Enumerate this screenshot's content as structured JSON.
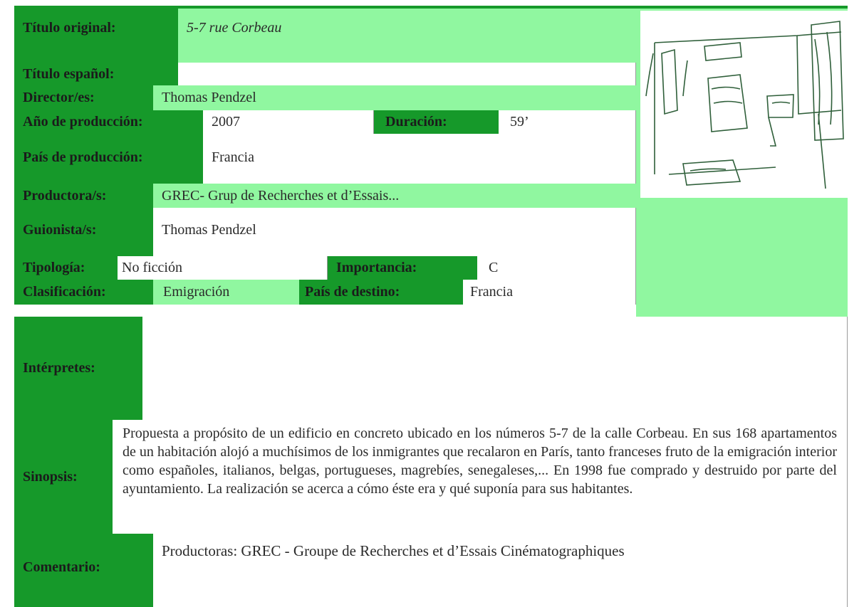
{
  "form": {
    "titulo_original": {
      "label": "Título original:",
      "value": "5-7 rue Corbeau"
    },
    "titulo_espanol": {
      "label": "Título español:"
    },
    "director": {
      "label": "Director/es:",
      "value": "Thomas Pendzel"
    },
    "anio": {
      "label": "Año de producción:",
      "value": "2007"
    },
    "duracion": {
      "label": "Duración:",
      "value": "59’"
    },
    "pais_produccion": {
      "label": "País de producción:",
      "value": "Francia"
    },
    "productora": {
      "label": "Productora/s:",
      "value": "GREC- Grup de Recherches et d’Essais..."
    },
    "guionista": {
      "label": "Guionista/s:",
      "value": "Thomas Pendzel"
    },
    "tipologia": {
      "label": "Tipología:",
      "value": "No ficción"
    },
    "importancia": {
      "label": "Importancia:",
      "value": "C"
    },
    "clasificacion": {
      "label": "Clasificación:",
      "value": "Emigración"
    },
    "pais_destino": {
      "label": "País de destino:",
      "value": "Francia"
    },
    "interpretes": {
      "label": "Intérpretes:"
    },
    "sinopsis": {
      "label": "Sinopsis:",
      "value": "Propuesta a propósito de un edificio en concreto ubicado en los números 5-7 de la calle Corbeau. En sus 168 apartamentos de un habitación alojó a muchísimos de los inmigrantes que recalaron en París, tanto franceses fruto de la emigración interior como españoles, italianos, belgas, portugueses, magrebíes, senegaleses,... En 1998 fue comprado y destruido por parte del ayuntamiento. La realización se acerca a cómo éste era y qué suponía para sus habitantes."
    },
    "comentario": {
      "label": "Comentario:",
      "value": "Productoras: GREC - Groupe de Recherches et d’Essais Cinématographiques"
    }
  }
}
